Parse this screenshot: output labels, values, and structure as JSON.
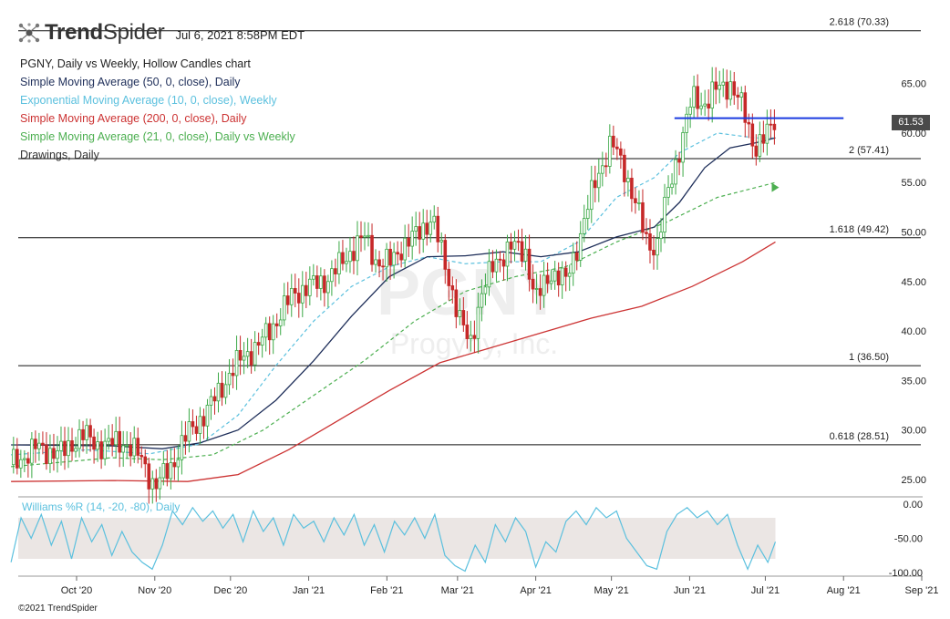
{
  "header": {
    "brand_bold": "Trend",
    "brand_light": "Spider",
    "timestamp": "Jul 6, 2021 8:58PM EDT"
  },
  "legend": {
    "title": "PGNY, Daily vs Weekly, Hollow Candles chart",
    "items": [
      {
        "label": "Simple Moving Average (50, 0, close), Daily",
        "color": "#1f2f5a"
      },
      {
        "label": "Exponential Moving Average (10, 0, close), Weekly",
        "color": "#5bc0de"
      },
      {
        "label": "Simple Moving Average (200, 0, close), Daily",
        "color": "#cc3333"
      },
      {
        "label": "Simple Moving Average (21, 0, close), Daily vs Weekly",
        "color": "#4caf50"
      },
      {
        "label": "Drawings, Daily",
        "color": "#333333"
      }
    ]
  },
  "watermark": {
    "symbol": "PGNY",
    "name": "Progyny, Inc."
  },
  "last_price": "61.53",
  "footer": "©2021 TrendSpider",
  "chart_data": {
    "type": "line",
    "symbol": "PGNY",
    "price_axis": {
      "ticks": [
        "65.00",
        "60.00",
        "55.00",
        "50.00",
        "45.00",
        "40.00",
        "35.00",
        "30.00",
        "25.00"
      ],
      "values": [
        65,
        60,
        55,
        50,
        45,
        40,
        35,
        30,
        25
      ],
      "range": [
        22.5,
        71.5
      ]
    },
    "x_axis": {
      "ticks": [
        "Oct '20",
        "Nov '20",
        "Dec '20",
        "Jan '21",
        "Feb '21",
        "Mar '21",
        "Apr '21",
        "May '21",
        "Jun '21",
        "Jul '21",
        "Aug '21",
        "Sep '21"
      ],
      "tick_days": [
        26,
        57,
        87,
        118,
        149,
        177,
        208,
        238,
        269,
        299,
        330,
        361
      ],
      "data_start_day": 0,
      "data_end_day": 303
    },
    "fib_levels": [
      {
        "label": "2.618 (70.33)",
        "value": 70.33
      },
      {
        "label": "2 (57.41)",
        "value": 57.41
      },
      {
        "label": "1.618 (49.42)",
        "value": 49.42
      },
      {
        "label": "1 (36.50)",
        "value": 36.5
      },
      {
        "label": "0.618 (28.51)",
        "value": 28.51
      }
    ],
    "resistance_line": {
      "value": 61.5,
      "from_day": 263,
      "to_day": 330,
      "color": "#1a3be0"
    },
    "close_series": {
      "name": "PGNY",
      "points": [
        [
          0,
          26.5
        ],
        [
          10,
          28.2
        ],
        [
          20,
          27.6
        ],
        [
          28,
          29.6
        ],
        [
          35,
          28.4
        ],
        [
          45,
          28.8
        ],
        [
          52,
          27.0
        ],
        [
          57,
          24.2
        ],
        [
          63,
          26.2
        ],
        [
          70,
          29.6
        ],
        [
          78,
          32.0
        ],
        [
          85,
          35.0
        ],
        [
          92,
          37.5
        ],
        [
          98,
          38.5
        ],
        [
          105,
          41.0
        ],
        [
          112,
          43.8
        ],
        [
          118,
          44.5
        ],
        [
          124,
          45.0
        ],
        [
          130,
          46.5
        ],
        [
          136,
          48.5
        ],
        [
          140,
          49.5
        ],
        [
          145,
          47.0
        ],
        [
          150,
          46.8
        ],
        [
          155,
          48.6
        ],
        [
          160,
          49.5
        ],
        [
          167,
          51.5
        ],
        [
          170,
          48.5
        ],
        [
          175,
          44.0
        ],
        [
          178,
          41.0
        ],
        [
          182,
          38.5
        ],
        [
          186,
          43.5
        ],
        [
          192,
          47.0
        ],
        [
          198,
          48.5
        ],
        [
          204,
          48.0
        ],
        [
          208,
          43.0
        ],
        [
          214,
          46.0
        ],
        [
          220,
          45.0
        ],
        [
          226,
          50.0
        ],
        [
          232,
          55.5
        ],
        [
          238,
          59.0
        ],
        [
          243,
          56.5
        ],
        [
          248,
          52.5
        ],
        [
          252,
          49.0
        ],
        [
          256,
          48.5
        ],
        [
          260,
          53.5
        ],
        [
          265,
          58.5
        ],
        [
          270,
          63.5
        ],
        [
          275,
          63.0
        ],
        [
          280,
          64.5
        ],
        [
          285,
          65.0
        ],
        [
          290,
          62.5
        ],
        [
          295,
          58.5
        ],
        [
          299,
          59.5
        ],
        [
          303,
          61.5
        ]
      ]
    },
    "sma50": {
      "name": "Simple Moving Average (50, 0, close), Daily",
      "points": [
        [
          0,
          28.5
        ],
        [
          40,
          28.4
        ],
        [
          60,
          28.1
        ],
        [
          75,
          28.7
        ],
        [
          90,
          30.0
        ],
        [
          105,
          33.0
        ],
        [
          120,
          37.0
        ],
        [
          135,
          41.5
        ],
        [
          150,
          45.5
        ],
        [
          165,
          47.5
        ],
        [
          180,
          47.6
        ],
        [
          195,
          48.0
        ],
        [
          210,
          47.5
        ],
        [
          225,
          48.0
        ],
        [
          240,
          49.5
        ],
        [
          255,
          50.5
        ],
        [
          265,
          53.0
        ],
        [
          275,
          56.5
        ],
        [
          285,
          58.5
        ],
        [
          295,
          59.0
        ],
        [
          303,
          59.5
        ]
      ]
    },
    "ema10w": {
      "name": "Exponential Moving Average (10, 0, close), Weekly",
      "points": [
        [
          0,
          27.5
        ],
        [
          30,
          28.0
        ],
        [
          55,
          27.6
        ],
        [
          75,
          28.6
        ],
        [
          90,
          31.5
        ],
        [
          105,
          36.5
        ],
        [
          120,
          41.0
        ],
        [
          135,
          44.5
        ],
        [
          150,
          46.5
        ],
        [
          165,
          47.5
        ],
        [
          180,
          46.8
        ],
        [
          195,
          47.0
        ],
        [
          210,
          47.0
        ],
        [
          225,
          49.0
        ],
        [
          240,
          53.5
        ],
        [
          255,
          55.5
        ],
        [
          265,
          58.0
        ],
        [
          280,
          60.0
        ],
        [
          295,
          59.5
        ],
        [
          303,
          59.5
        ]
      ]
    },
    "sma200": {
      "name": "Simple Moving Average (200, 0, close), Daily",
      "points": [
        [
          0,
          24.8
        ],
        [
          40,
          24.9
        ],
        [
          70,
          24.8
        ],
        [
          90,
          25.5
        ],
        [
          110,
          28.0
        ],
        [
          130,
          31.0
        ],
        [
          150,
          34.0
        ],
        [
          170,
          36.8
        ],
        [
          190,
          38.3
        ],
        [
          210,
          39.8
        ],
        [
          230,
          41.3
        ],
        [
          250,
          42.5
        ],
        [
          270,
          44.5
        ],
        [
          290,
          47.0
        ],
        [
          303,
          49.0
        ]
      ]
    },
    "sma21w": {
      "name": "Simple Moving Average (21, 0, close), Daily vs Weekly",
      "points": [
        [
          0,
          26.3
        ],
        [
          40,
          27.2
        ],
        [
          60,
          27.0
        ],
        [
          80,
          27.5
        ],
        [
          100,
          30.0
        ],
        [
          120,
          33.5
        ],
        [
          140,
          37.0
        ],
        [
          160,
          41.0
        ],
        [
          180,
          44.0
        ],
        [
          200,
          45.5
        ],
        [
          220,
          46.5
        ],
        [
          240,
          49.0
        ],
        [
          260,
          51.0
        ],
        [
          280,
          53.5
        ],
        [
          303,
          55.0
        ]
      ]
    },
    "williams_r": {
      "label": "Williams %R (14, -20, -80), Daily",
      "axis_ticks": [
        "0.00",
        "-50.00",
        "-100.00"
      ],
      "axis_values": [
        0,
        -50,
        -100
      ],
      "band": [
        -20,
        -80
      ],
      "points": [
        [
          0,
          -85
        ],
        [
          4,
          -20
        ],
        [
          8,
          -50
        ],
        [
          12,
          -15
        ],
        [
          16,
          -60
        ],
        [
          20,
          -25
        ],
        [
          24,
          -80
        ],
        [
          28,
          -20
        ],
        [
          32,
          -55
        ],
        [
          36,
          -30
        ],
        [
          40,
          -75
        ],
        [
          44,
          -40
        ],
        [
          48,
          -70
        ],
        [
          52,
          -85
        ],
        [
          56,
          -95
        ],
        [
          60,
          -60
        ],
        [
          64,
          -10
        ],
        [
          68,
          -30
        ],
        [
          72,
          -5
        ],
        [
          76,
          -25
        ],
        [
          80,
          -10
        ],
        [
          84,
          -35
        ],
        [
          88,
          -15
        ],
        [
          92,
          -55
        ],
        [
          96,
          -10
        ],
        [
          100,
          -40
        ],
        [
          104,
          -20
        ],
        [
          108,
          -60
        ],
        [
          112,
          -15
        ],
        [
          116,
          -35
        ],
        [
          120,
          -25
        ],
        [
          124,
          -55
        ],
        [
          128,
          -20
        ],
        [
          132,
          -45
        ],
        [
          136,
          -15
        ],
        [
          140,
          -60
        ],
        [
          144,
          -30
        ],
        [
          148,
          -70
        ],
        [
          152,
          -25
        ],
        [
          156,
          -45
        ],
        [
          160,
          -20
        ],
        [
          164,
          -50
        ],
        [
          168,
          -15
        ],
        [
          172,
          -75
        ],
        [
          176,
          -90
        ],
        [
          180,
          -98
        ],
        [
          184,
          -60
        ],
        [
          188,
          -85
        ],
        [
          192,
          -30
        ],
        [
          196,
          -55
        ],
        [
          200,
          -20
        ],
        [
          204,
          -40
        ],
        [
          208,
          -92
        ],
        [
          212,
          -55
        ],
        [
          216,
          -70
        ],
        [
          220,
          -25
        ],
        [
          224,
          -10
        ],
        [
          228,
          -30
        ],
        [
          232,
          -5
        ],
        [
          236,
          -20
        ],
        [
          240,
          -10
        ],
        [
          244,
          -50
        ],
        [
          248,
          -70
        ],
        [
          252,
          -90
        ],
        [
          256,
          -95
        ],
        [
          260,
          -40
        ],
        [
          264,
          -15
        ],
        [
          268,
          -5
        ],
        [
          272,
          -20
        ],
        [
          276,
          -10
        ],
        [
          280,
          -30
        ],
        [
          284,
          -15
        ],
        [
          288,
          -60
        ],
        [
          292,
          -95
        ],
        [
          296,
          -60
        ],
        [
          300,
          -85
        ],
        [
          303,
          -55
        ]
      ]
    }
  }
}
